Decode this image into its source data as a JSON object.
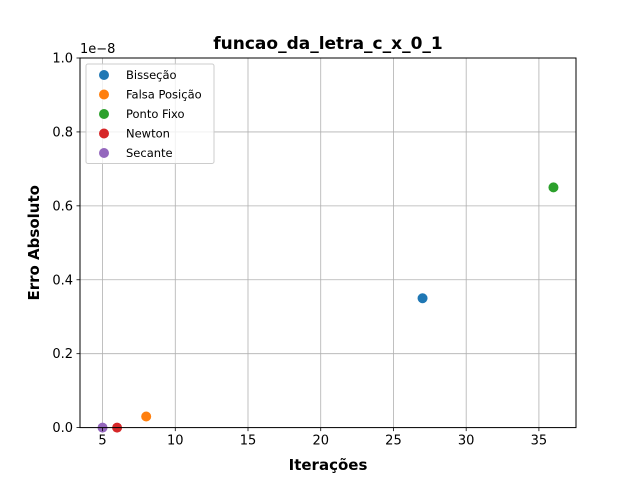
{
  "chart_data": {
    "type": "scatter",
    "title": "funcao_da_letra_c_x_0_1",
    "xlabel": "Iterações",
    "ylabel": "Erro Absoluto",
    "y_scale_label": "1e−8",
    "xlim": [
      3.45,
      37.55
    ],
    "ylim": [
      0,
      1.0
    ],
    "y_multiplier": 1e-08,
    "x_ticks": [
      5,
      10,
      15,
      20,
      25,
      30,
      35
    ],
    "y_ticks": [
      0.0,
      0.2,
      0.4,
      0.6,
      0.8,
      1.0
    ],
    "x_tick_labels": [
      "5",
      "10",
      "15",
      "20",
      "25",
      "30",
      "35"
    ],
    "y_tick_labels": [
      "0.0",
      "0.2",
      "0.4",
      "0.6",
      "0.8",
      "1.0"
    ],
    "grid": true,
    "legend_position": "top-left",
    "series": [
      {
        "name": "Bisseção",
        "color": "#1f77b4",
        "points": [
          [
            27,
            0.35
          ]
        ]
      },
      {
        "name": "Falsa Posição",
        "color": "#ff7f0e",
        "points": [
          [
            8,
            0.03
          ]
        ]
      },
      {
        "name": "Ponto Fixo",
        "color": "#2ca02c",
        "points": [
          [
            36,
            0.65
          ]
        ]
      },
      {
        "name": "Newton",
        "color": "#d62728",
        "points": [
          [
            6,
            0.0
          ]
        ]
      },
      {
        "name": "Secante",
        "color": "#9467bd",
        "points": [
          [
            5,
            0.0
          ]
        ]
      }
    ]
  }
}
